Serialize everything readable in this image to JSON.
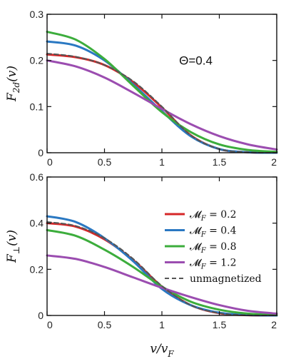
{
  "chart_data": [
    {
      "type": "line",
      "ylabel": "F2d(v)",
      "ylabel_main": "F",
      "ylabel_sub": "2d",
      "ylabel_tail": "(v)",
      "xlim": [
        0,
        2
      ],
      "ylim": [
        0,
        0.3
      ],
      "xticks": [
        0,
        0.5,
        1,
        1.5,
        2
      ],
      "xtick_labels": [
        "0",
        "0.5",
        "1",
        "1.5",
        "2"
      ],
      "yticks": [
        0,
        0.1,
        0.2,
        0.3
      ],
      "ytick_labels": [
        "0",
        "0.1",
        "0.2",
        "0.3"
      ],
      "annotation": "Θ=0.4",
      "series": [
        {
          "key": "mf02",
          "color": "#d62728",
          "dashed": false,
          "x": [
            0,
            0.25,
            0.5,
            0.75,
            1.0,
            1.25,
            1.5,
            1.75,
            2.0
          ],
          "y": [
            0.213,
            0.207,
            0.19,
            0.153,
            0.098,
            0.038,
            0.008,
            0.001,
            0.0
          ]
        },
        {
          "key": "mf04",
          "color": "#2a78c2",
          "dashed": false,
          "x": [
            0,
            0.25,
            0.5,
            0.75,
            1.0,
            1.25,
            1.5,
            1.75,
            2.0
          ],
          "y": [
            0.241,
            0.232,
            0.2,
            0.148,
            0.09,
            0.036,
            0.008,
            0.001,
            0.0
          ]
        },
        {
          "key": "mf08",
          "color": "#3cad3c",
          "dashed": false,
          "x": [
            0,
            0.25,
            0.5,
            0.75,
            1.0,
            1.25,
            1.5,
            1.75,
            2.0
          ],
          "y": [
            0.262,
            0.245,
            0.203,
            0.145,
            0.088,
            0.045,
            0.018,
            0.006,
            0.002
          ]
        },
        {
          "key": "mf12",
          "color": "#9b4db0",
          "dashed": false,
          "x": [
            0,
            0.25,
            0.5,
            0.75,
            1.0,
            1.25,
            1.5,
            1.75,
            2.0
          ],
          "y": [
            0.2,
            0.187,
            0.163,
            0.13,
            0.095,
            0.062,
            0.036,
            0.018,
            0.007
          ]
        },
        {
          "key": "unmag",
          "color": "#555555",
          "dashed": true,
          "x": [
            0,
            0.25,
            0.5,
            0.75,
            1.0,
            1.25,
            1.5,
            1.75,
            2.0
          ],
          "y": [
            0.215,
            0.208,
            0.19,
            0.155,
            0.1,
            0.038,
            0.008,
            0.001,
            0.0
          ]
        }
      ]
    },
    {
      "type": "line",
      "ylabel": "F⊥(v)",
      "ylabel_main": "F",
      "ylabel_sub": "⊥",
      "ylabel_tail": "(v)",
      "xlabel": "v/vF",
      "xlabel_main": "v/v",
      "xlabel_sub": "F",
      "xlim": [
        0,
        2
      ],
      "ylim": [
        0,
        0.6
      ],
      "xticks": [
        0,
        0.5,
        1,
        1.5,
        2
      ],
      "xtick_labels": [
        "0",
        "0.5",
        "1",
        "1.5",
        "2"
      ],
      "yticks": [
        0,
        0.2,
        0.4,
        0.6
      ],
      "ytick_labels": [
        "0",
        "0.2",
        "0.4",
        "0.6"
      ],
      "legend_position": "top-right",
      "legend": [
        {
          "key": "mf02",
          "label": "𝓜F = 0.2",
          "main": "𝓜",
          "sub": "F",
          "tail": " = 0.2"
        },
        {
          "key": "mf04",
          "label": "𝓜F = 0.4",
          "main": "𝓜",
          "sub": "F",
          "tail": " = 0.4"
        },
        {
          "key": "mf08",
          "label": "𝓜F = 0.8",
          "main": "𝓜",
          "sub": "F",
          "tail": " = 0.8"
        },
        {
          "key": "mf12",
          "label": "𝓜F = 1.2",
          "main": "𝓜",
          "sub": "F",
          "tail": " = 1.2"
        },
        {
          "key": "unmag",
          "label": "unmagnetized",
          "main": "unmagnetized",
          "sub": "",
          "tail": ""
        }
      ],
      "series": [
        {
          "key": "mf02",
          "color": "#d62728",
          "dashed": false,
          "x": [
            0,
            0.25,
            0.5,
            0.75,
            1.0,
            1.25,
            1.5,
            1.75,
            2.0
          ],
          "y": [
            0.4,
            0.385,
            0.33,
            0.24,
            0.125,
            0.045,
            0.01,
            0.001,
            0.0
          ]
        },
        {
          "key": "mf04",
          "color": "#2a78c2",
          "dashed": false,
          "x": [
            0,
            0.25,
            0.5,
            0.75,
            1.0,
            1.25,
            1.5,
            1.75,
            2.0
          ],
          "y": [
            0.43,
            0.405,
            0.335,
            0.235,
            0.115,
            0.045,
            0.012,
            0.002,
            0.0
          ]
        },
        {
          "key": "mf08",
          "color": "#3cad3c",
          "dashed": false,
          "x": [
            0,
            0.25,
            0.5,
            0.75,
            1.0,
            1.25,
            1.5,
            1.75,
            2.0
          ],
          "y": [
            0.37,
            0.345,
            0.285,
            0.21,
            0.125,
            0.06,
            0.025,
            0.008,
            0.002
          ]
        },
        {
          "key": "mf12",
          "color": "#9b4db0",
          "dashed": false,
          "x": [
            0,
            0.25,
            0.5,
            0.75,
            1.0,
            1.25,
            1.5,
            1.75,
            2.0
          ],
          "y": [
            0.26,
            0.245,
            0.21,
            0.165,
            0.12,
            0.08,
            0.045,
            0.02,
            0.008
          ]
        },
        {
          "key": "unmag",
          "color": "#555555",
          "dashed": true,
          "x": [
            0,
            0.25,
            0.5,
            0.75,
            1.0,
            1.25,
            1.5,
            1.75,
            2.0
          ],
          "y": [
            0.405,
            0.388,
            0.335,
            0.245,
            0.128,
            0.045,
            0.01,
            0.001,
            0.0
          ]
        }
      ]
    }
  ]
}
